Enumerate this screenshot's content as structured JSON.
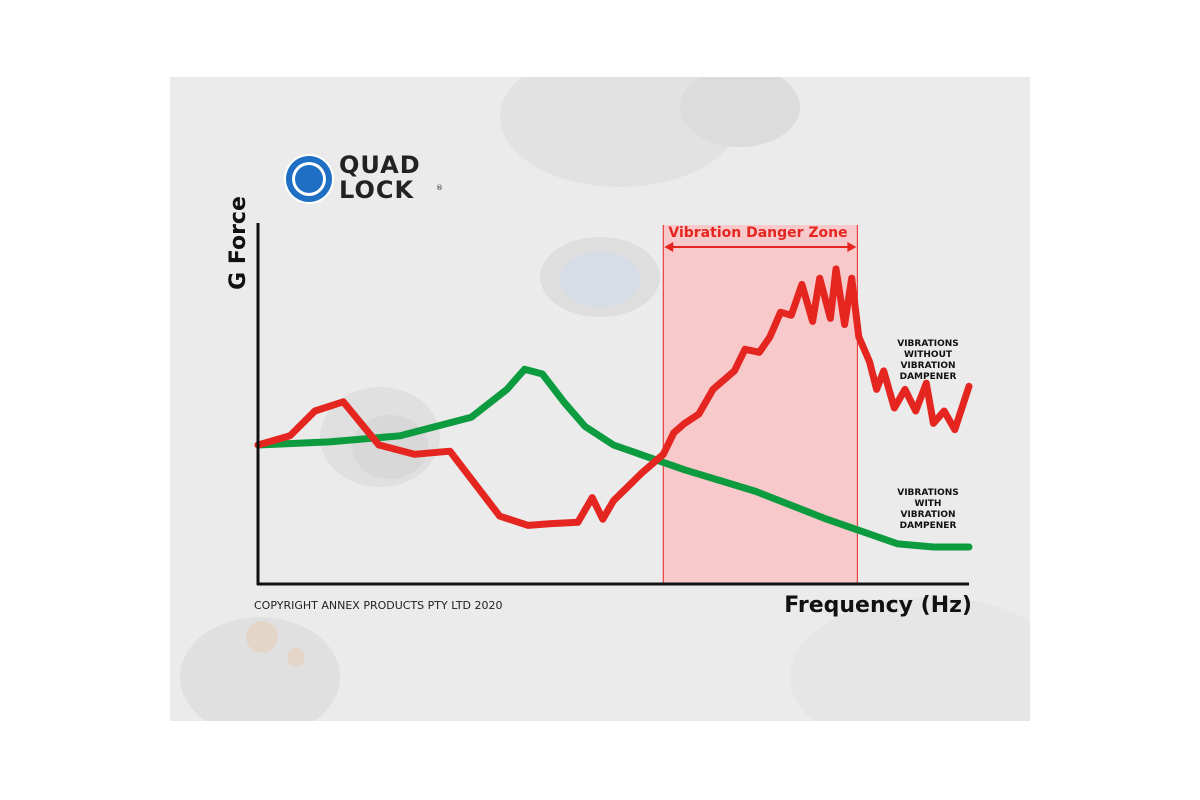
{
  "brand": {
    "logo_line1": "QUAD",
    "logo_line2": "LOCK",
    "logo_reg": "®",
    "logo_color": "#1f6fc5"
  },
  "copyright": "COPYRIGHT ANNEX PRODUCTS PTY LTD 2020",
  "chart_data": {
    "type": "line",
    "title": "",
    "xlabel": "Frequency (Hz)",
    "ylabel": "G Force",
    "xlim": [
      0,
      100
    ],
    "ylim": [
      0,
      100
    ],
    "grid": false,
    "axis_ticks": false,
    "danger_zone": {
      "label": "Vibration Danger Zone",
      "x_range": [
        57,
        84.3
      ],
      "fill_color": "#f7c9cb",
      "line_color": "#e52620"
    },
    "series": [
      {
        "label_lines": [
          "VIBRATIONS",
          "WITHOUT",
          "VIBRATION",
          "DAMPENER"
        ],
        "color": "#e52620",
        "x": [
          0,
          4.5,
          8,
          12,
          17,
          22,
          27,
          34,
          38,
          41,
          45,
          47,
          48.5,
          50,
          54,
          57,
          58.5,
          60,
          62,
          64,
          65.5,
          67,
          68.5,
          70.5,
          72,
          73.5,
          75,
          76.5,
          78,
          79,
          80.5,
          81.3,
          82.5,
          83.5,
          84.5,
          86,
          87,
          88,
          89.5,
          91,
          92.5,
          94,
          95,
          96.5,
          98,
          100
        ],
        "y": [
          44,
          47,
          55,
          58,
          44,
          41,
          42,
          21,
          18,
          18.5,
          19,
          27,
          20,
          26,
          35,
          41,
          48,
          51,
          54,
          62,
          65,
          68,
          75,
          74,
          79,
          87,
          86,
          96,
          84,
          98,
          85,
          101,
          83,
          98,
          79,
          71,
          62,
          68,
          56,
          62,
          55,
          64,
          51,
          55,
          49,
          63
        ]
      },
      {
        "label_lines": [
          "VIBRATIONS",
          "WITH",
          "VIBRATION",
          "DAMPENER"
        ],
        "color": "#0c9b3e",
        "x": [
          0,
          10,
          20,
          30,
          35,
          37.5,
          40,
          43,
          46,
          50,
          55,
          60,
          70,
          80,
          85,
          90,
          95,
          100
        ],
        "y": [
          44,
          45,
          47,
          53,
          62,
          68.5,
          67,
          58,
          50,
          44,
          40,
          36,
          29,
          20,
          16,
          12,
          11,
          11
        ]
      }
    ]
  }
}
